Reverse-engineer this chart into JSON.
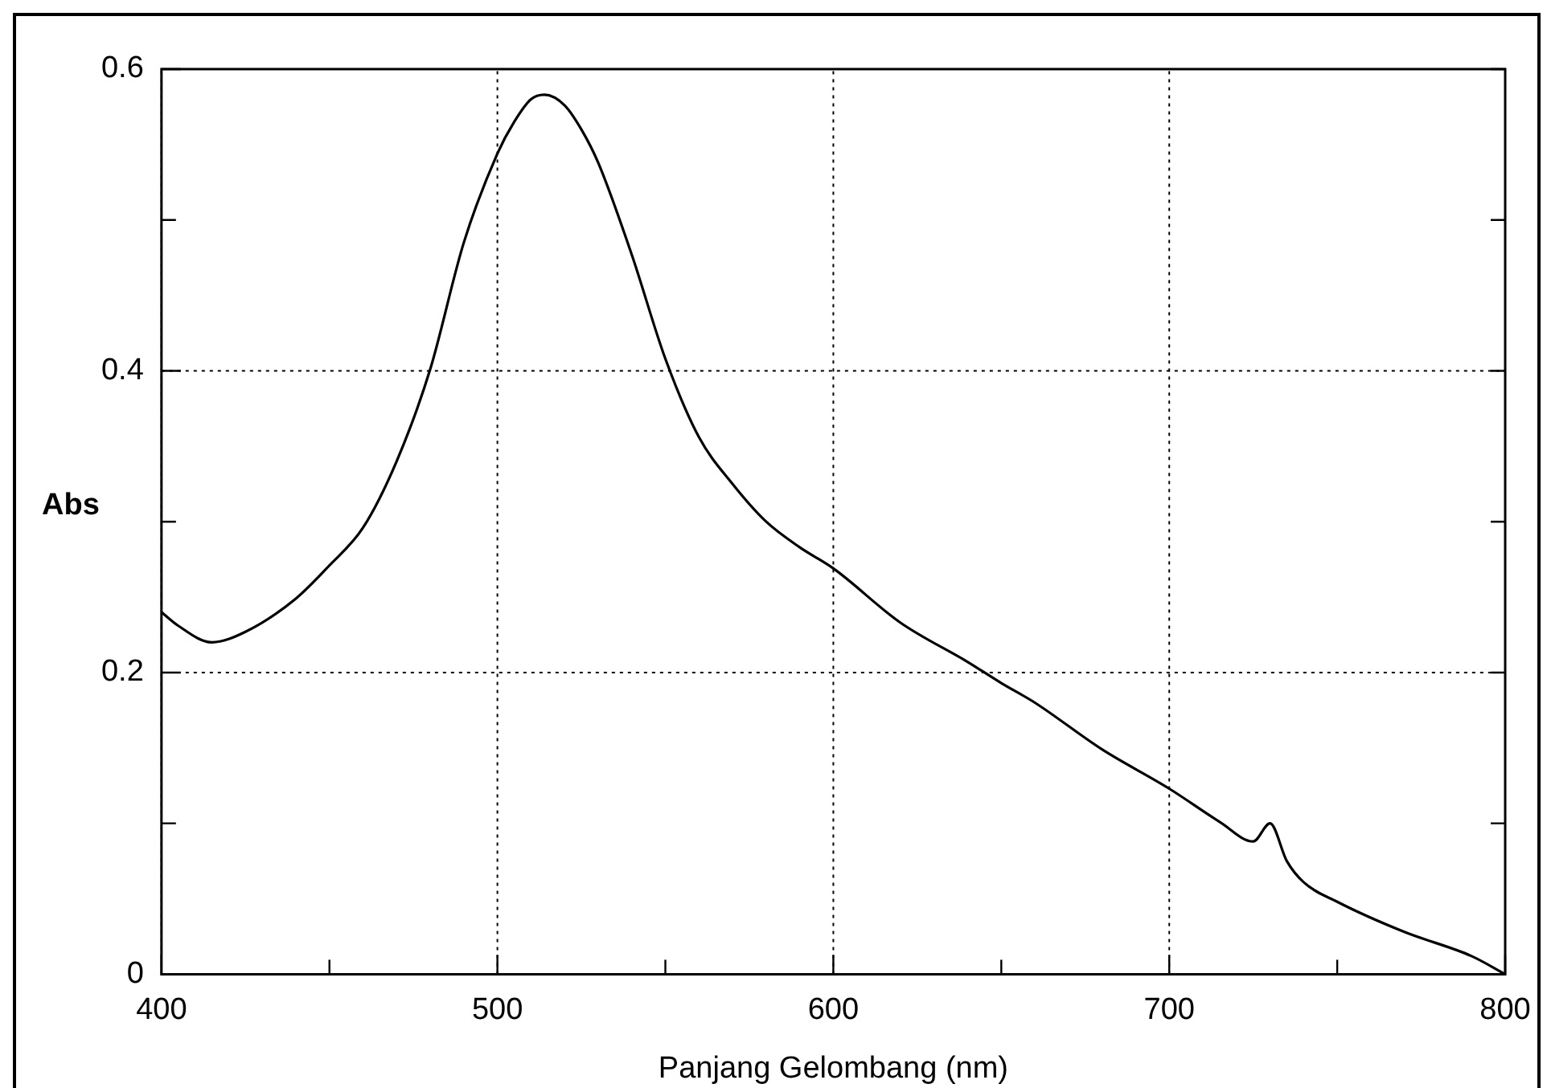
{
  "chart_data": {
    "type": "line",
    "xlabel": "Panjang Gelombang (nm)",
    "ylabel": "Abs",
    "x": [
      400,
      405,
      415,
      425,
      440,
      450,
      460,
      470,
      480,
      490,
      500,
      505,
      510,
      514,
      520,
      525,
      530,
      540,
      550,
      560,
      570,
      580,
      590,
      600,
      620,
      640,
      650,
      660,
      680,
      700,
      715,
      725,
      730,
      735,
      740,
      750,
      770,
      790,
      800
    ],
    "series": [
      {
        "color": "#000000",
        "values": [
          0.24,
          0.231,
          0.22,
          0.227,
          0.249,
          0.271,
          0.296,
          0.34,
          0.401,
          0.485,
          0.544,
          0.565,
          0.58,
          0.583,
          0.576,
          0.56,
          0.538,
          0.477,
          0.408,
          0.356,
          0.325,
          0.3,
          0.283,
          0.269,
          0.233,
          0.207,
          0.193,
          0.18,
          0.149,
          0.123,
          0.101,
          0.088,
          0.1,
          0.075,
          0.061,
          0.048,
          0.028,
          0.012,
          0
        ]
      }
    ],
    "xlim": [
      400,
      800
    ],
    "xticks": [
      400,
      {
        "value": 450,
        "label": null
      },
      500,
      {
        "value": 550,
        "label": null
      },
      600,
      {
        "value": 650,
        "label": null
      },
      700,
      {
        "value": 750,
        "label": null
      },
      800
    ],
    "ylim": [
      0,
      0.6
    ],
    "yticks": [
      0,
      {
        "value": 0.1,
        "label": null
      },
      0.2,
      {
        "value": 0.3,
        "label": null
      },
      0.4,
      {
        "value": 0.5,
        "label": null
      },
      0.6
    ],
    "grid": true,
    "legend": false,
    "marker": "none",
    "line_style": "solid"
  }
}
